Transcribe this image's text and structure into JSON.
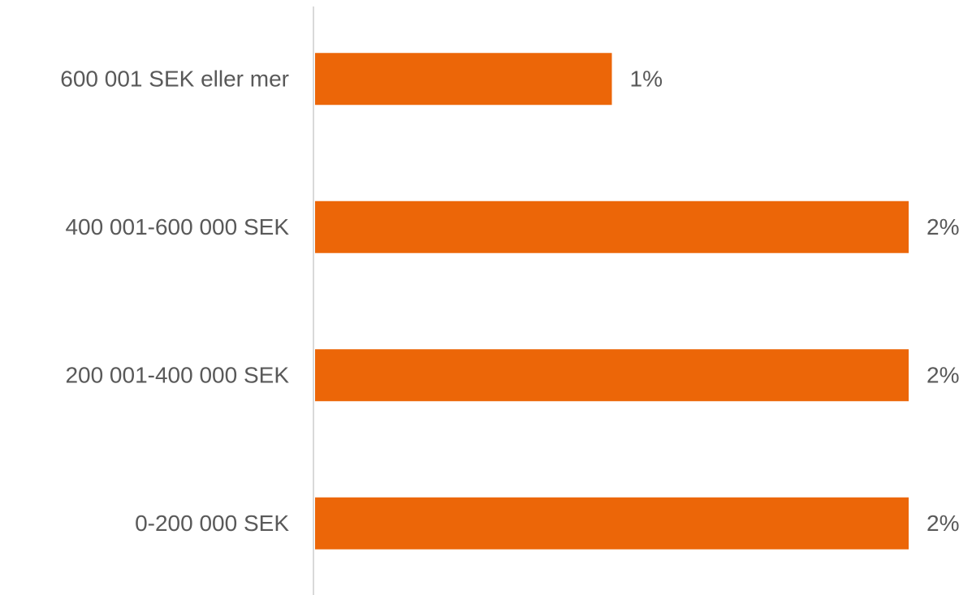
{
  "chart_data": {
    "type": "hbar",
    "categories": [
      "600 001 SEK eller mer",
      "400 001-600 000 SEK",
      "200 001-400 000 SEK",
      "0-200 000 SEK"
    ],
    "values": [
      1,
      2,
      2,
      2
    ],
    "value_labels": [
      "1%",
      "2%",
      "2%",
      "2%"
    ],
    "color": "#ec6608"
  }
}
